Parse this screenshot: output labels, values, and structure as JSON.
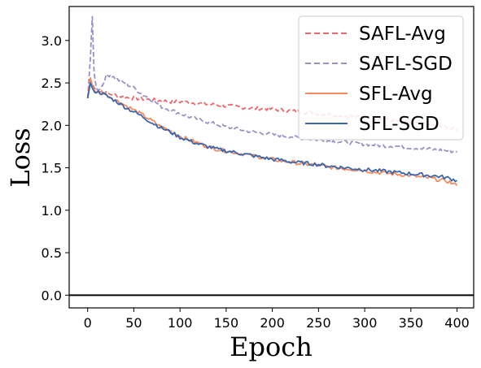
{
  "chart_data": {
    "type": "line",
    "title": "",
    "xlabel": "Epoch",
    "ylabel": "Loss",
    "xlim": [
      -20,
      418
    ],
    "ylim": [
      -0.15,
      3.4
    ],
    "xticks": [
      "0",
      "50",
      "100",
      "150",
      "200",
      "250",
      "300",
      "350",
      "400"
    ],
    "yticks": [
      "0.0",
      "0.5",
      "1.0",
      "1.5",
      "2.0",
      "2.5",
      "3.0"
    ],
    "xtick_values": [
      0,
      50,
      100,
      150,
      200,
      250,
      300,
      350,
      400
    ],
    "ytick_values": [
      0,
      0.5,
      1.0,
      1.5,
      2.0,
      2.5,
      3.0
    ],
    "horizontal_line_y": 0,
    "grid": false,
    "legend_position": "top-right",
    "series": [
      {
        "name": "SAFL-Avg",
        "color": "#e8686c",
        "dashed": true,
        "x": [
          0,
          3,
          5,
          7,
          10,
          15,
          20,
          30,
          40,
          50,
          60,
          70,
          80,
          90,
          100,
          110,
          120,
          130,
          140,
          150,
          160,
          170,
          180,
          190,
          200,
          210,
          220,
          230,
          240,
          250,
          260,
          270,
          280,
          290,
          300,
          310,
          320,
          330,
          340,
          350,
          360,
          370,
          380,
          390,
          400
        ],
        "y": [
          2.32,
          2.52,
          2.5,
          2.44,
          2.42,
          2.4,
          2.38,
          2.36,
          2.33,
          2.32,
          2.31,
          2.3,
          2.29,
          2.28,
          2.28,
          2.27,
          2.26,
          2.25,
          2.24,
          2.23,
          2.22,
          2.21,
          2.2,
          2.2,
          2.19,
          2.18,
          2.17,
          2.16,
          2.15,
          2.14,
          2.13,
          2.12,
          2.11,
          2.1,
          2.09,
          2.08,
          2.07,
          2.06,
          2.04,
          2.03,
          2.02,
          2.0,
          1.99,
          1.97,
          1.94
        ]
      },
      {
        "name": "SAFL-SGD",
        "color": "#9b8fc6",
        "dashed": true,
        "x": [
          0,
          3,
          5,
          7,
          10,
          15,
          20,
          25,
          30,
          40,
          50,
          60,
          70,
          80,
          90,
          100,
          110,
          120,
          130,
          140,
          150,
          160,
          170,
          180,
          190,
          200,
          210,
          220,
          230,
          240,
          250,
          260,
          270,
          280,
          290,
          300,
          310,
          320,
          330,
          340,
          350,
          360,
          370,
          380,
          390,
          400
        ],
        "y": [
          2.32,
          2.8,
          3.28,
          2.62,
          2.42,
          2.45,
          2.58,
          2.6,
          2.55,
          2.5,
          2.44,
          2.36,
          2.3,
          2.22,
          2.18,
          2.14,
          2.1,
          2.07,
          2.04,
          2.01,
          1.98,
          1.96,
          1.94,
          1.92,
          1.91,
          1.89,
          1.88,
          1.87,
          1.85,
          1.84,
          1.83,
          1.82,
          1.81,
          1.8,
          1.79,
          1.78,
          1.77,
          1.76,
          1.76,
          1.75,
          1.74,
          1.73,
          1.72,
          1.71,
          1.7,
          1.69
        ]
      },
      {
        "name": "SFL-Avg",
        "color": "#f58b5c",
        "dashed": false,
        "x": [
          0,
          3,
          5,
          7,
          10,
          15,
          20,
          30,
          40,
          50,
          60,
          70,
          80,
          90,
          100,
          110,
          120,
          130,
          140,
          150,
          160,
          170,
          180,
          190,
          200,
          210,
          220,
          230,
          240,
          250,
          260,
          270,
          280,
          290,
          300,
          310,
          320,
          330,
          340,
          350,
          360,
          370,
          380,
          390,
          400
        ],
        "y": [
          2.32,
          2.56,
          2.46,
          2.42,
          2.38,
          2.4,
          2.36,
          2.3,
          2.24,
          2.18,
          2.12,
          2.05,
          1.98,
          1.93,
          1.87,
          1.83,
          1.79,
          1.75,
          1.72,
          1.7,
          1.68,
          1.66,
          1.64,
          1.62,
          1.6,
          1.58,
          1.57,
          1.55,
          1.54,
          1.53,
          1.51,
          1.5,
          1.49,
          1.48,
          1.47,
          1.45,
          1.44,
          1.43,
          1.42,
          1.41,
          1.39,
          1.38,
          1.36,
          1.34,
          1.29
        ]
      },
      {
        "name": "SFL-SGD",
        "color": "#3a66ae",
        "dashed": false,
        "x": [
          0,
          3,
          5,
          7,
          10,
          15,
          20,
          30,
          40,
          50,
          60,
          70,
          80,
          90,
          100,
          110,
          120,
          130,
          140,
          150,
          160,
          170,
          180,
          190,
          200,
          210,
          220,
          230,
          240,
          250,
          260,
          270,
          280,
          290,
          300,
          310,
          320,
          330,
          340,
          350,
          360,
          370,
          380,
          390,
          400
        ],
        "y": [
          2.32,
          2.5,
          2.44,
          2.4,
          2.4,
          2.38,
          2.35,
          2.29,
          2.22,
          2.16,
          2.1,
          2.03,
          1.97,
          1.92,
          1.86,
          1.82,
          1.78,
          1.75,
          1.72,
          1.7,
          1.68,
          1.66,
          1.64,
          1.62,
          1.6,
          1.59,
          1.57,
          1.56,
          1.55,
          1.54,
          1.52,
          1.51,
          1.5,
          1.49,
          1.48,
          1.47,
          1.46,
          1.45,
          1.44,
          1.43,
          1.42,
          1.41,
          1.4,
          1.38,
          1.35
        ]
      }
    ]
  }
}
